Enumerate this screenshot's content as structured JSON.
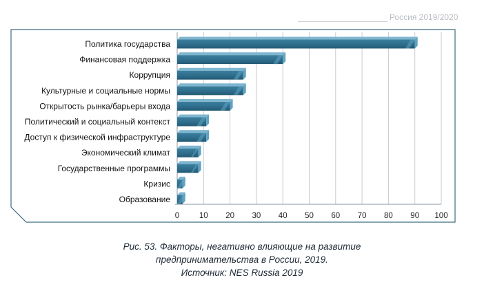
{
  "header": {
    "label": "Россия 2019/2020"
  },
  "chart_data": {
    "type": "bar",
    "orientation": "horizontal",
    "categories": [
      "Политика государства",
      "Финансовая поддержка",
      "Коррупция",
      "Культурные и социальные нормы",
      "Открытость рынка/барьеры входа",
      "Политический и социальный контекст",
      "Доступ к физической инфраструктуре",
      "Экономический климат ",
      "Государственные программы",
      "Кризис",
      "Образование"
    ],
    "values": [
      90,
      40,
      25,
      25,
      20,
      11,
      11,
      8,
      8,
      2,
      2
    ],
    "xlim": [
      0,
      100
    ],
    "xticks": [
      "0",
      "10",
      "20",
      "30",
      "40",
      "50",
      "60",
      "70",
      "80",
      "90",
      "100"
    ],
    "grid": true,
    "bar_color": "#2f6f8e",
    "bar_highlight_color": "#5fa3c1",
    "bar_top_color": "#7fb6cf",
    "frame_color": "#3d6c82"
  },
  "caption": {
    "line1": "Рис. 53. Факторы, негативно влияющие на развитие",
    "line2": "предпринимательства в России, 2019.",
    "line3": "Источник: NES Russia 2019"
  }
}
